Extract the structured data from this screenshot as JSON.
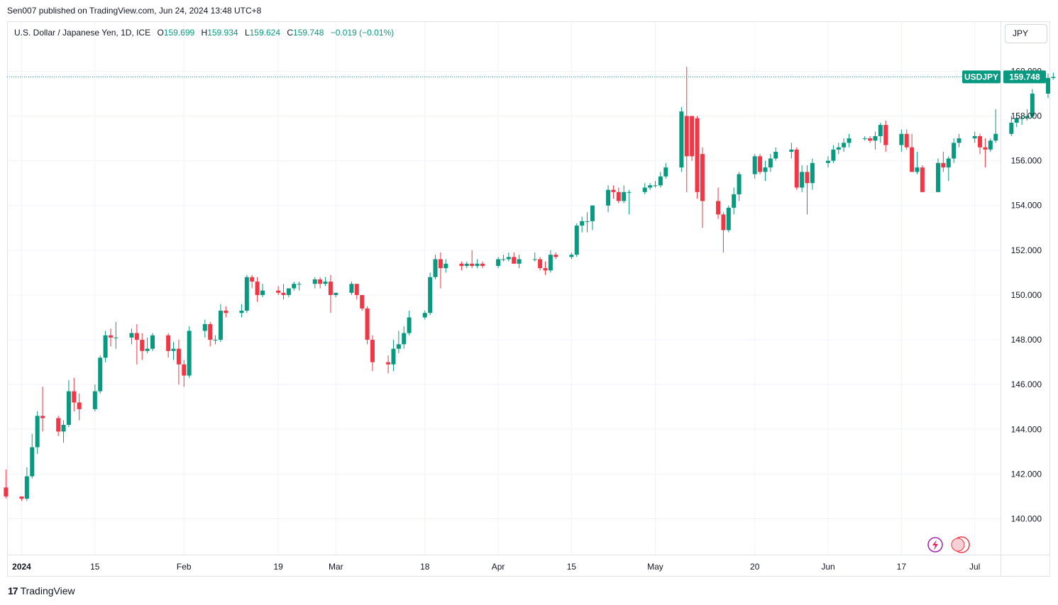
{
  "header": {
    "published": "Sen007 published on TradingView.com, Jun 24, 2024 13:48 UTC+8"
  },
  "legend": {
    "symbol": "U.S. Dollar / Japanese Yen, 1D, ICE",
    "o_label": "O",
    "o": "159.699",
    "h_label": "H",
    "h": "159.934",
    "l_label": "L",
    "l": "159.624",
    "c_label": "C",
    "c": "159.748",
    "change": "−0.019 (−0.01%)"
  },
  "currency_button": "JPY",
  "last_price": {
    "ticker": "USDJPY",
    "value": "159.748"
  },
  "footer": {
    "brand": "TradingView"
  },
  "colors": {
    "up": "#089981",
    "down": "#f23645",
    "grid": "#f0f3fa",
    "text": "#131722"
  },
  "chart_data": {
    "type": "candlestick",
    "title": "U.S. Dollar / Japanese Yen, 1D, ICE",
    "ylim": [
      138.4,
      162.2
    ],
    "y_ticks": [
      "140.000",
      "142.000",
      "144.000",
      "146.000",
      "148.000",
      "150.000",
      "152.000",
      "154.000",
      "156.000",
      "158.000",
      "160.000"
    ],
    "x_ticks": [
      {
        "label": "2024",
        "date": "2024-01-01",
        "bold": true
      },
      {
        "label": "15",
        "date": "2024-01-15"
      },
      {
        "label": "Feb",
        "date": "2024-02-01"
      },
      {
        "label": "19",
        "date": "2024-02-19"
      },
      {
        "label": "Mar",
        "date": "2024-03-01"
      },
      {
        "label": "18",
        "date": "2024-03-18"
      },
      {
        "label": "Apr",
        "date": "2024-04-01"
      },
      {
        "label": "15",
        "date": "2024-04-15"
      },
      {
        "label": "May",
        "date": "2024-05-01"
      },
      {
        "label": "20",
        "date": "2024-05-20"
      },
      {
        "label": "Jun",
        "date": "2024-06-03"
      },
      {
        "label": "17",
        "date": "2024-06-17"
      },
      {
        "label": "Jul",
        "date": "2024-07-01"
      }
    ],
    "candles": [
      [
        "2023-12-29",
        141.4,
        142.2,
        140.9,
        141.0
      ],
      [
        "2024-01-01",
        141.0,
        141.0,
        140.8,
        140.9
      ],
      [
        "2024-01-02",
        140.9,
        142.3,
        140.8,
        141.9
      ],
      [
        "2024-01-03",
        141.9,
        143.8,
        141.8,
        143.2
      ],
      [
        "2024-01-04",
        143.2,
        144.8,
        142.9,
        144.6
      ],
      [
        "2024-01-05",
        144.6,
        145.9,
        143.9,
        144.5
      ],
      [
        "2024-01-08",
        144.5,
        144.6,
        143.7,
        143.9
      ],
      [
        "2024-01-09",
        143.9,
        144.4,
        143.4,
        144.2
      ],
      [
        "2024-01-10",
        144.2,
        146.2,
        144.1,
        145.7
      ],
      [
        "2024-01-11",
        145.7,
        146.3,
        144.8,
        145.2
      ],
      [
        "2024-01-12",
        145.2,
        145.6,
        144.4,
        144.9
      ],
      [
        "2024-01-15",
        144.9,
        146.0,
        144.8,
        145.7
      ],
      [
        "2024-01-16",
        145.7,
        147.3,
        145.6,
        147.2
      ],
      [
        "2024-01-17",
        147.2,
        148.4,
        147.0,
        148.2
      ],
      [
        "2024-01-18",
        148.2,
        148.5,
        147.7,
        148.1
      ],
      [
        "2024-01-19",
        148.1,
        148.8,
        147.6,
        148.1
      ],
      [
        "2024-01-22",
        148.1,
        148.5,
        147.8,
        148.3
      ],
      [
        "2024-01-23",
        148.3,
        148.7,
        146.9,
        148.0
      ],
      [
        "2024-01-24",
        148.0,
        148.3,
        147.1,
        147.5
      ],
      [
        "2024-01-25",
        147.5,
        148.1,
        147.4,
        147.6
      ],
      [
        "2024-01-26",
        147.6,
        148.3,
        147.5,
        148.2
      ],
      [
        "2024-01-29",
        148.2,
        148.3,
        147.2,
        147.5
      ],
      [
        "2024-01-30",
        147.5,
        147.9,
        147.1,
        147.6
      ],
      [
        "2024-01-31",
        147.6,
        148.0,
        146.0,
        146.9
      ],
      [
        "2024-02-01",
        146.9,
        147.1,
        145.9,
        146.4
      ],
      [
        "2024-02-02",
        146.4,
        148.6,
        146.3,
        148.4
      ],
      [
        "2024-02-05",
        148.4,
        148.9,
        148.1,
        148.7
      ],
      [
        "2024-02-06",
        148.7,
        148.8,
        147.7,
        148.0
      ],
      [
        "2024-02-07",
        148.0,
        148.2,
        147.8,
        148.0
      ],
      [
        "2024-02-08",
        148.0,
        149.6,
        147.9,
        149.3
      ],
      [
        "2024-02-09",
        149.3,
        149.5,
        149.0,
        149.2
      ],
      [
        "2024-02-12",
        149.2,
        149.6,
        149.0,
        149.3
      ],
      [
        "2024-02-13",
        149.3,
        150.9,
        149.2,
        150.8
      ],
      [
        "2024-02-14",
        150.8,
        150.9,
        150.3,
        150.6
      ],
      [
        "2024-02-15",
        150.6,
        150.8,
        149.7,
        150.0
      ],
      [
        "2024-02-16",
        150.0,
        150.5,
        149.9,
        150.2
      ],
      [
        "2024-02-19",
        150.2,
        150.4,
        150.0,
        150.1
      ],
      [
        "2024-02-20",
        150.1,
        150.5,
        149.8,
        150.0
      ],
      [
        "2024-02-21",
        150.0,
        150.3,
        149.9,
        150.3
      ],
      [
        "2024-02-22",
        150.3,
        150.6,
        150.2,
        150.5
      ],
      [
        "2024-02-23",
        150.5,
        150.6,
        150.2,
        150.5
      ],
      [
        "2024-02-26",
        150.5,
        150.8,
        150.3,
        150.7
      ],
      [
        "2024-02-27",
        150.7,
        150.8,
        150.3,
        150.5
      ],
      [
        "2024-02-28",
        150.5,
        150.8,
        150.4,
        150.6
      ],
      [
        "2024-02-29",
        150.6,
        150.9,
        149.2,
        150.0
      ],
      [
        "2024-03-01",
        150.0,
        150.1,
        149.9,
        150.1
      ],
      [
        "2024-03-04",
        150.1,
        150.6,
        150.0,
        150.5
      ],
      [
        "2024-03-05",
        150.5,
        150.5,
        149.8,
        150.0
      ],
      [
        "2024-03-06",
        150.0,
        150.0,
        149.3,
        149.4
      ],
      [
        "2024-03-07",
        149.4,
        149.5,
        147.8,
        148.0
      ],
      [
        "2024-03-08",
        148.0,
        148.2,
        146.6,
        147.0
      ],
      [
        "2024-03-11",
        147.0,
        147.3,
        146.5,
        146.9
      ],
      [
        "2024-03-12",
        146.9,
        148.0,
        146.6,
        147.6
      ],
      [
        "2024-03-13",
        147.6,
        148.4,
        147.4,
        147.8
      ],
      [
        "2024-03-14",
        147.8,
        148.6,
        147.6,
        148.3
      ],
      [
        "2024-03-15",
        148.3,
        149.3,
        148.2,
        149.0
      ],
      [
        "2024-03-18",
        149.0,
        149.3,
        148.9,
        149.2
      ],
      [
        "2024-03-19",
        149.2,
        151.0,
        149.1,
        150.8
      ],
      [
        "2024-03-20",
        150.8,
        151.8,
        150.7,
        151.6
      ],
      [
        "2024-03-21",
        151.6,
        151.9,
        150.3,
        151.2
      ],
      [
        "2024-03-22",
        151.2,
        151.6,
        151.0,
        151.4
      ],
      [
        "2024-03-25",
        151.4,
        151.5,
        151.1,
        151.3
      ],
      [
        "2024-03-26",
        151.3,
        151.5,
        151.2,
        151.4
      ],
      [
        "2024-03-27",
        151.4,
        152.0,
        151.2,
        151.3
      ],
      [
        "2024-03-28",
        151.3,
        151.6,
        151.2,
        151.4
      ],
      [
        "2024-03-29",
        151.4,
        151.5,
        151.2,
        151.3
      ],
      [
        "2024-04-01",
        151.3,
        151.7,
        151.2,
        151.6
      ],
      [
        "2024-04-02",
        151.6,
        151.8,
        151.5,
        151.6
      ],
      [
        "2024-04-03",
        151.6,
        151.9,
        151.5,
        151.7
      ],
      [
        "2024-04-04",
        151.7,
        151.9,
        151.5,
        151.4
      ],
      [
        "2024-04-05",
        151.4,
        151.8,
        151.2,
        151.6
      ],
      [
        "2024-04-08",
        151.6,
        151.9,
        151.5,
        151.6
      ],
      [
        "2024-04-09",
        151.6,
        151.7,
        151.1,
        151.2
      ],
      [
        "2024-04-10",
        151.2,
        151.5,
        150.9,
        151.1
      ],
      [
        "2024-04-11",
        151.1,
        152.0,
        151.0,
        151.8
      ],
      [
        "2024-04-12",
        151.8,
        151.9,
        151.6,
        151.7
      ],
      [
        "2024-04-15",
        151.7,
        151.9,
        151.6,
        151.8
      ],
      [
        "2024-04-16",
        151.8,
        153.2,
        151.7,
        153.1
      ],
      [
        "2024-04-17",
        153.1,
        153.5,
        152.8,
        153.3
      ],
      [
        "2024-04-18",
        153.3,
        153.7,
        152.8,
        153.3
      ],
      [
        "2024-04-19",
        153.3,
        154.0,
        152.9,
        154.0
      ],
      [
        "2024-04-22",
        154.0,
        154.9,
        153.7,
        154.7
      ],
      [
        "2024-04-23",
        154.7,
        154.9,
        154.3,
        154.6
      ],
      [
        "2024-04-24",
        154.6,
        154.8,
        154.1,
        154.2
      ],
      [
        "2024-04-25",
        154.2,
        154.9,
        154.1,
        154.6
      ],
      [
        "2024-04-26",
        154.6,
        154.7,
        153.6,
        154.6
      ],
      [
        "2024-04-29",
        154.6,
        155.0,
        154.5,
        154.8
      ],
      [
        "2024-04-30",
        154.8,
        155.0,
        154.7,
        154.9
      ],
      [
        "2024-05-01",
        154.9,
        155.1,
        154.8,
        154.9
      ],
      [
        "2024-05-02",
        154.9,
        155.5,
        154.8,
        155.3
      ],
      [
        "2024-05-03",
        155.3,
        155.9,
        155.2,
        155.7
      ],
      [
        "2024-05-06",
        155.7,
        158.4,
        155.5,
        158.2
      ],
      [
        "2024-05-07",
        158.0,
        160.2,
        154.6,
        156.2
      ],
      [
        "2024-05-08",
        158.0,
        158.0,
        156.0,
        156.2
      ],
      [
        "2024-05-09",
        157.9,
        158.0,
        154.3,
        154.6
      ],
      [
        "2024-05-10",
        156.3,
        156.6,
        153.0,
        154.2
      ],
      [
        "2024-05-13",
        154.2,
        154.8,
        153.4,
        153.6
      ],
      [
        "2024-05-14",
        153.6,
        153.7,
        151.9,
        152.9
      ],
      [
        "2024-05-15",
        152.9,
        154.0,
        152.8,
        153.9
      ],
      [
        "2024-05-16",
        153.9,
        154.8,
        153.6,
        154.5
      ],
      [
        "2024-05-17",
        154.5,
        155.5,
        154.2,
        155.4
      ],
      [
        "2024-05-20",
        155.4,
        156.3,
        155.2,
        156.2
      ],
      [
        "2024-05-21",
        156.2,
        156.3,
        155.4,
        155.5
      ],
      [
        "2024-05-22",
        155.5,
        156.0,
        155.1,
        155.7
      ],
      [
        "2024-05-23",
        155.7,
        156.3,
        155.5,
        156.1
      ],
      [
        "2024-05-24",
        156.1,
        156.6,
        156.0,
        156.4
      ],
      [
        "2024-05-27",
        156.4,
        156.8,
        156.1,
        156.5
      ],
      [
        "2024-05-28",
        156.5,
        156.6,
        154.7,
        154.8
      ],
      [
        "2024-05-29",
        154.8,
        155.8,
        154.6,
        155.5
      ],
      [
        "2024-05-30",
        155.5,
        155.8,
        153.6,
        155.0
      ],
      [
        "2024-05-31",
        155.0,
        156.1,
        154.7,
        155.9
      ],
      [
        "2024-06-03",
        155.9,
        156.2,
        155.7,
        156.0
      ],
      [
        "2024-06-04",
        156.0,
        156.7,
        155.9,
        156.5
      ],
      [
        "2024-06-05",
        156.5,
        156.8,
        156.3,
        156.6
      ],
      [
        "2024-06-06",
        156.6,
        157.0,
        156.4,
        156.8
      ],
      [
        "2024-06-07",
        156.8,
        157.2,
        156.6,
        157.0
      ],
      [
        "2024-06-10",
        157.0,
        157.1,
        156.9,
        157.0
      ],
      [
        "2024-06-11",
        157.0,
        157.1,
        156.8,
        156.9
      ],
      [
        "2024-06-12",
        156.9,
        157.3,
        156.5,
        157.1
      ],
      [
        "2024-06-13",
        157.1,
        157.7,
        156.8,
        157.6
      ],
      [
        "2024-06-14",
        157.6,
        157.8,
        156.4,
        156.7
      ],
      [
        "2024-06-17",
        156.7,
        157.4,
        156.4,
        157.2
      ],
      [
        "2024-06-18",
        157.2,
        157.4,
        156.5,
        156.6
      ],
      [
        "2024-06-19",
        156.6,
        157.2,
        155.5,
        155.5
      ],
      [
        "2024-06-20",
        155.5,
        156.4,
        155.4,
        155.7
      ],
      [
        "2024-06-21",
        155.7,
        155.8,
        154.6,
        154.6
      ],
      [
        "2024-06-24",
        154.6,
        156.1,
        154.6,
        155.9
      ],
      [
        "2024-06-25",
        155.9,
        156.4,
        155.5,
        155.7
      ],
      [
        "2024-06-26",
        155.7,
        156.2,
        155.1,
        156.1
      ],
      [
        "2024-06-27",
        156.1,
        157.0,
        155.9,
        156.8
      ],
      [
        "2024-06-28",
        156.8,
        157.2,
        156.6,
        157.0
      ],
      [
        "2024-07-01",
        157.0,
        157.3,
        156.8,
        157.1
      ],
      [
        "2024-07-02",
        157.1,
        157.2,
        156.3,
        156.6
      ],
      [
        "2024-07-03",
        156.6,
        157.0,
        155.7,
        156.5
      ],
      [
        "2024-07-04",
        156.5,
        157.0,
        156.4,
        156.9
      ],
      [
        "2024-07-05",
        156.9,
        158.3,
        156.8,
        157.2
      ],
      [
        "2024-07-08",
        157.2,
        158.0,
        157.1,
        157.7
      ],
      [
        "2024-07-09",
        157.7,
        158.1,
        157.5,
        157.9
      ],
      [
        "2024-07-10",
        157.9,
        158.0,
        157.6,
        157.9
      ],
      [
        "2024-07-11",
        157.9,
        158.3,
        157.8,
        158.0
      ],
      [
        "2024-07-12",
        158.0,
        159.2,
        157.9,
        159.0
      ],
      [
        "2024-07-15",
        159.0,
        159.9,
        158.8,
        159.7
      ],
      [
        "2024-07-16",
        159.699,
        159.934,
        159.624,
        159.748
      ]
    ]
  }
}
